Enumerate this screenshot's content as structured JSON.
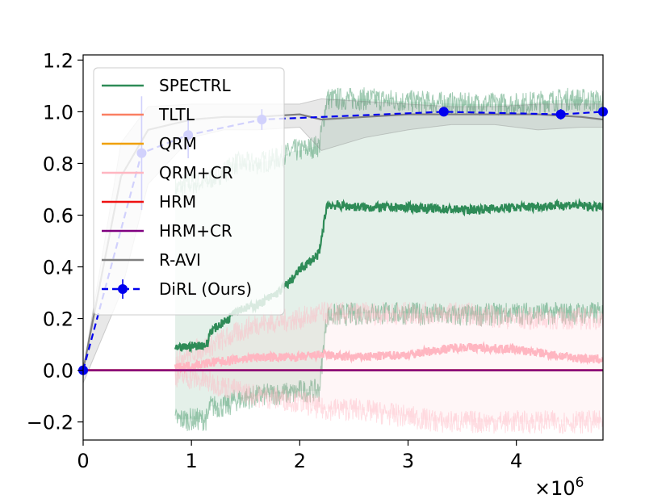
{
  "chart_data": {
    "type": "line",
    "x_multiplier_label": "×10",
    "x_multiplier_exp": "6",
    "xlim": [
      0,
      4.8
    ],
    "ylim": [
      -0.27,
      1.22
    ],
    "x_ticks": [
      0,
      1,
      2,
      3,
      4
    ],
    "x_tick_labels": [
      "0",
      "1",
      "2",
      "3",
      "4"
    ],
    "y_ticks": [
      -0.2,
      0.0,
      0.2,
      0.4,
      0.6,
      0.8,
      1.0,
      1.2
    ],
    "y_tick_labels": [
      "−0.2",
      "0.0",
      "0.2",
      "0.4",
      "0.6",
      "0.8",
      "1.0",
      "1.2"
    ],
    "legend_position": "upper-left",
    "series": [
      {
        "name": "SPECTRL",
        "color": "#2e8b57",
        "style": "noisy",
        "x": [
          0.85,
          0.95,
          1.15,
          1.17,
          1.35,
          1.37,
          1.6,
          1.8,
          1.95,
          2.0,
          2.18,
          2.25,
          2.6,
          3.0,
          3.5,
          4.0,
          4.5,
          4.8
        ],
        "y": [
          0.08,
          0.09,
          0.1,
          0.15,
          0.2,
          0.23,
          0.25,
          0.3,
          0.36,
          0.39,
          0.45,
          0.64,
          0.63,
          0.63,
          0.62,
          0.63,
          0.64,
          0.63
        ],
        "upper": [
          0.7,
          0.72,
          0.73,
          0.74,
          0.78,
          0.8,
          0.8,
          0.82,
          0.85,
          0.85,
          0.87,
          1.05,
          1.05,
          1.04,
          1.03,
          1.03,
          1.05,
          1.04
        ],
        "lower": [
          -0.19,
          -0.19,
          -0.19,
          -0.14,
          -0.14,
          -0.12,
          -0.1,
          -0.09,
          -0.09,
          -0.08,
          -0.08,
          0.21,
          0.22,
          0.22,
          0.21,
          0.22,
          0.22,
          0.22
        ]
      },
      {
        "name": "TLTL",
        "color": "#fa7f62",
        "style": "flat",
        "x": [
          0,
          4.8
        ],
        "y": [
          0.0,
          0.0
        ]
      },
      {
        "name": "QRM",
        "color": "#f0a000",
        "style": "flat",
        "x": [
          0,
          4.8
        ],
        "y": [
          0.0,
          0.0
        ]
      },
      {
        "name": "QRM+CR",
        "color": "#ffb6c1",
        "style": "noisy",
        "x": [
          0.85,
          1.2,
          1.6,
          2.0,
          2.2,
          2.5,
          3.0,
          3.3,
          3.5,
          4.0,
          4.5,
          4.8
        ],
        "y": [
          0.01,
          0.03,
          0.05,
          0.05,
          0.06,
          0.05,
          0.06,
          0.08,
          0.09,
          0.08,
          0.05,
          0.04
        ],
        "upper": [
          0.05,
          0.1,
          0.18,
          0.2,
          0.22,
          0.22,
          0.22,
          0.22,
          0.22,
          0.2,
          0.2,
          0.2
        ],
        "lower": [
          -0.02,
          -0.05,
          -0.1,
          -0.12,
          -0.15,
          -0.15,
          -0.18,
          -0.2,
          -0.2,
          -0.2,
          -0.2,
          -0.2
        ]
      },
      {
        "name": "HRM",
        "color": "#ee1111",
        "style": "flat",
        "x": [
          0,
          4.8
        ],
        "y": [
          0.0,
          0.0
        ]
      },
      {
        "name": "HRM+CR",
        "color": "#800080",
        "style": "flat",
        "x": [
          0,
          4.8
        ],
        "y": [
          0.0,
          0.0
        ]
      },
      {
        "name": "R-AVI",
        "color": "#808080",
        "style": "smooth",
        "x": [
          0,
          0.35,
          0.6,
          1.0,
          1.3,
          1.6,
          2.0,
          2.2,
          2.6,
          3.0,
          3.4,
          3.8,
          4.2,
          4.6,
          4.8
        ],
        "y": [
          0.0,
          0.75,
          0.93,
          0.97,
          0.98,
          0.98,
          0.99,
          0.97,
          0.98,
          0.99,
          0.99,
          0.99,
          0.99,
          0.98,
          0.97
        ],
        "upper": [
          0.0,
          0.88,
          1.02,
          1.03,
          1.03,
          1.03,
          1.03,
          1.05,
          1.04,
          1.03,
          1.02,
          1.02,
          1.03,
          1.03,
          1.03
        ],
        "lower": [
          -0.05,
          0.3,
          0.72,
          0.9,
          0.93,
          0.93,
          0.94,
          0.85,
          0.9,
          0.93,
          0.95,
          0.95,
          0.93,
          0.94,
          0.94
        ]
      },
      {
        "name": "DiRL (Ours)",
        "color": "#0000ee",
        "style": "dashed-markers",
        "x": [
          0,
          0.54,
          0.97,
          1.65,
          3.33,
          4.41,
          4.8
        ],
        "y": [
          0.0,
          0.84,
          0.91,
          0.97,
          1.0,
          0.99,
          1.0
        ],
        "err": [
          0.0,
          0.22,
          0.09,
          0.04,
          0.0,
          0.02,
          0.0
        ]
      }
    ]
  }
}
